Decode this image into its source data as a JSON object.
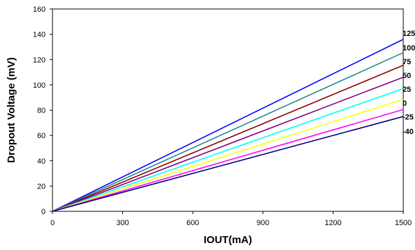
{
  "chart_data": {
    "type": "line",
    "title": "",
    "xlabel": "IOUT(mA)",
    "ylabel": "Dropout Voltage (mV)",
    "xlim": [
      0,
      1500
    ],
    "ylim": [
      0,
      160
    ],
    "xticks": [
      0,
      300,
      600,
      900,
      1200,
      1500
    ],
    "yticks": [
      0,
      20,
      40,
      60,
      80,
      100,
      120,
      140,
      160
    ],
    "grid": false,
    "legend": "none",
    "series": [
      {
        "name": "125",
        "color": "#0000ff",
        "x": [
          0,
          1500
        ],
        "y": [
          0,
          136
        ]
      },
      {
        "name": "100",
        "color": "#1f8a8a",
        "x": [
          0,
          1500
        ],
        "y": [
          0,
          125.5
        ]
      },
      {
        "name": "75",
        "color": "#8b0000",
        "x": [
          0,
          1500
        ],
        "y": [
          0,
          115.5
        ]
      },
      {
        "name": "50",
        "color": "#800080",
        "x": [
          0,
          1500
        ],
        "y": [
          0,
          106
        ]
      },
      {
        "name": "25",
        "color": "#00ffff",
        "x": [
          0,
          1500
        ],
        "y": [
          0,
          97
        ]
      },
      {
        "name": "0",
        "color": "#ffff00",
        "x": [
          0,
          1500
        ],
        "y": [
          0,
          88.5
        ]
      },
      {
        "name": "-25",
        "color": "#ff00ff",
        "x": [
          0,
          1500
        ],
        "y": [
          0,
          80.5
        ]
      },
      {
        "name": "-40",
        "color": "#000080",
        "x": [
          0,
          1500
        ],
        "y": [
          0,
          75
        ]
      }
    ]
  }
}
